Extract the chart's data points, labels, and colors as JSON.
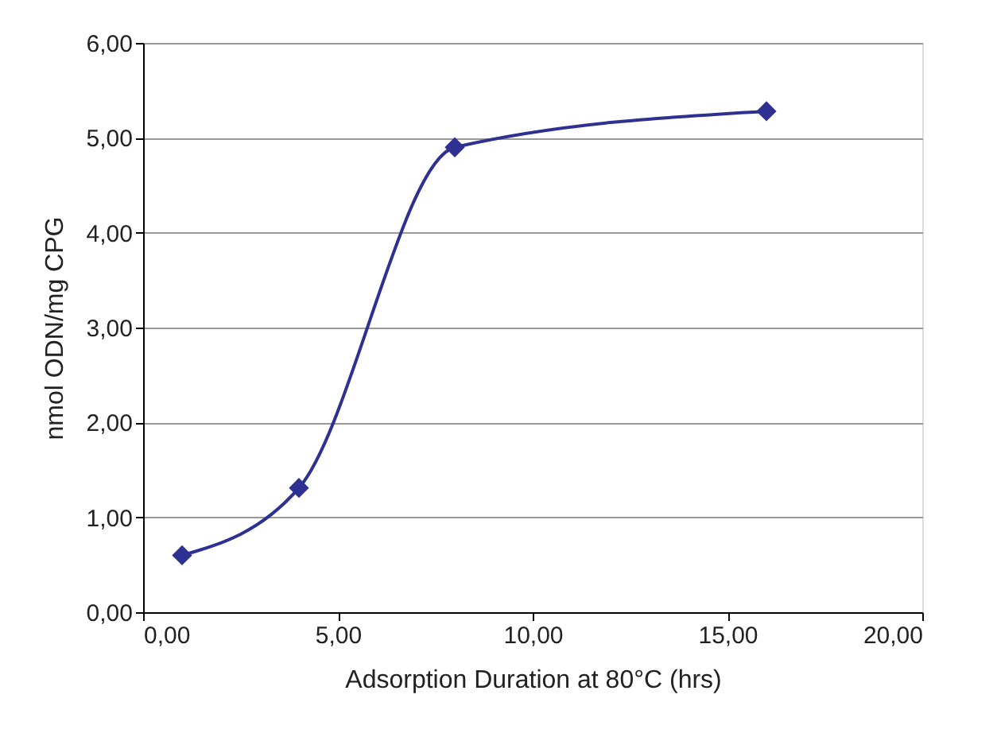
{
  "chart_data": {
    "type": "line",
    "xlabel": "Adsorption Duration at 80°C (hrs)",
    "ylabel": "nmol ODN/mg CPG",
    "x": [
      1,
      4,
      8,
      16
    ],
    "series": [
      {
        "color": "#2e3192",
        "values": [
          0.6,
          1.31,
          4.9,
          5.28
        ]
      }
    ],
    "xlim": [
      0,
      20
    ],
    "xticks": [
      {
        "value": 0,
        "label": "0,00"
      },
      {
        "value": 5,
        "label": "5,00"
      },
      {
        "value": 10,
        "label": "10,00"
      },
      {
        "value": 15,
        "label": "15,00"
      },
      {
        "value": 20,
        "label": "20,00"
      }
    ],
    "ylim": [
      0,
      6
    ],
    "yticks": [
      {
        "value": 0,
        "label": "0,00"
      },
      {
        "value": 1,
        "label": "1,00"
      },
      {
        "value": 2,
        "label": "2,00"
      },
      {
        "value": 3,
        "label": "3,00"
      },
      {
        "value": 4,
        "label": "4,00"
      },
      {
        "value": 5,
        "label": "5,00"
      },
      {
        "value": 6,
        "label": "6,00"
      }
    ],
    "grid": "y",
    "marker": "diamond",
    "line_style": "solid"
  }
}
